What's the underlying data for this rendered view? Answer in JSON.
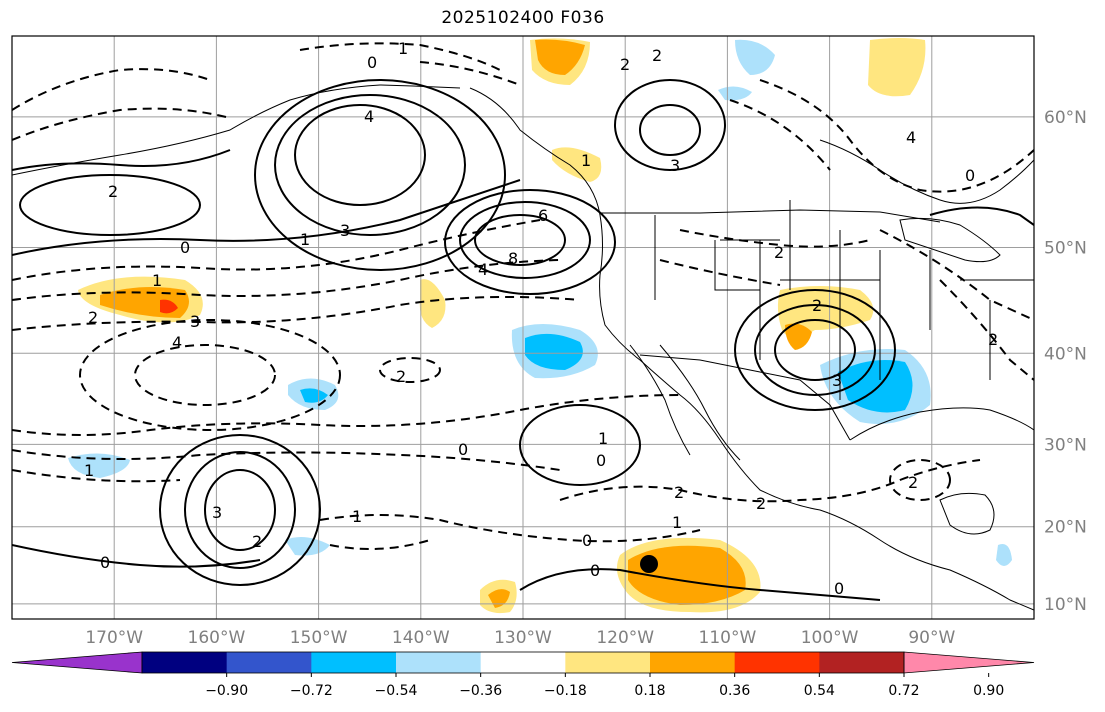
{
  "title": "2025102400 F036",
  "map": {
    "grid_lon": [
      -170,
      -160,
      -150,
      -140,
      -130,
      -120,
      -110,
      -100,
      -90
    ],
    "grid_lat": [
      10,
      20,
      30,
      40,
      50,
      60
    ],
    "lon_labels": [
      "170°W",
      "160°W",
      "150°W",
      "140°W",
      "130°W",
      "120°W",
      "110°W",
      "100°W",
      "90°W"
    ],
    "lat_labels": [
      "10°N",
      "20°N",
      "30°N",
      "40°N",
      "50°N",
      "60°N"
    ],
    "contour_labels": [
      "0",
      "2",
      "4",
      "3",
      "6",
      "8",
      "2",
      "1",
      "0",
      "1",
      "3",
      "4",
      "2",
      "0",
      "1",
      "2",
      "0",
      "3",
      "1",
      "0",
      "0",
      "2",
      "1",
      "1",
      "0",
      "2",
      "2",
      "0",
      "3",
      "2",
      "4",
      "3",
      "2",
      "1",
      "0",
      "2",
      "1",
      "2",
      "2",
      "4"
    ],
    "marker": "black-dot"
  },
  "colorbar": {
    "colors": [
      "#9933cc",
      "#000080",
      "#3355cc",
      "#00bfff",
      "#ade1fb",
      "#ffffff",
      "#ffe680",
      "#ffa500",
      "#ff3300",
      "#b22222",
      "#ff88aa"
    ],
    "tick_labels": [
      "−0.90",
      "−0.72",
      "−0.54",
      "−0.36",
      "−0.18",
      "0.18",
      "0.36",
      "0.54",
      "0.72",
      "0.90"
    ],
    "extend": "both"
  }
}
